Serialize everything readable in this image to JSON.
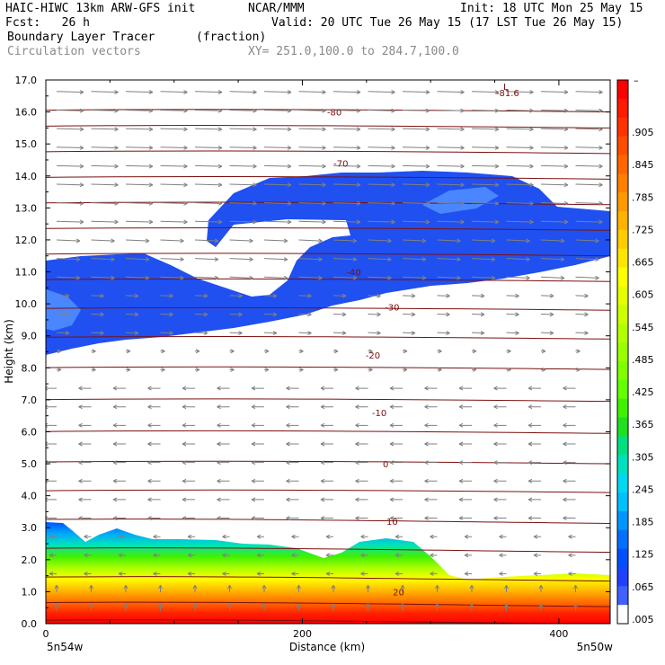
{
  "header": {
    "model_line": "HAIC-HIWC 13km ARW-GFS init",
    "org": "NCAR/MMM",
    "init_line": "Init: 18 UTC Mon 25 May 15",
    "fcst_line": "Fcst:   26 h",
    "valid_line": "Valid: 20 UTC Tue 26 May 15 (17 LST Tue 26 May 15)",
    "field1": "Boundary Layer Tracer",
    "field1_units": "(fraction)",
    "field2": "Circulation vectors",
    "xy_line": "XY= 251.0,100.0 to 284.7,100.0"
  },
  "colors": {
    "contour": "#7a1010",
    "vector": "#808080",
    "frame": "#000000"
  },
  "chart_data": {
    "type": "heatmap",
    "title": "Boundary Layer Tracer",
    "xlabel": "Distance (km)",
    "ylabel": "Height (km)",
    "xlim": [
      0,
      440
    ],
    "ylim": [
      0,
      17
    ],
    "x_ticks": [
      0,
      200,
      400
    ],
    "y_ticks": [
      "0.0",
      "1.0",
      "2.0",
      "3.0",
      "4.0",
      "5.0",
      "6.0",
      "7.0",
      "8.0",
      "9.0",
      "10.0",
      "11.0",
      "12.0",
      "13.0",
      "14.0",
      "15.0",
      "16.0",
      "17.0"
    ],
    "x_endpoints": {
      "left": "5n54w",
      "right": "5n50w"
    },
    "colorbar": {
      "labels": [
        ".905",
        ".845",
        ".785",
        ".725",
        ".665",
        ".605",
        ".545",
        ".485",
        ".425",
        ".365",
        ".305",
        ".245",
        ".185",
        ".125",
        ".065",
        ".005"
      ],
      "top_label": "–",
      "colors": [
        "#ff0000",
        "#ff1a00",
        "#ff3300",
        "#ff4d00",
        "#ff6600",
        "#ff8000",
        "#ff9900",
        "#ffb300",
        "#ffcc00",
        "#ffe600",
        "#ffff00",
        "#e6ff00",
        "#ccff00",
        "#b3ff00",
        "#99ff00",
        "#80ff00",
        "#66ff00",
        "#40f000",
        "#20e020",
        "#00e080",
        "#00e0c0",
        "#00d8f0",
        "#00c0ff",
        "#0096ff",
        "#0070ff",
        "#0050ff",
        "#2040ff",
        "#4060ff",
        "#ffffff"
      ]
    },
    "contours": [
      {
        "label": "-81.6",
        "x": 360,
        "y": 16.6
      },
      {
        "label": "-80",
        "x": 225,
        "y": 16.0
      },
      {
        "label": "-70",
        "x": 230,
        "y": 14.4
      },
      {
        "label": "-40",
        "x": 240,
        "y": 11.0
      },
      {
        "label": "-30",
        "x": 270,
        "y": 9.9
      },
      {
        "label": "-20",
        "x": 255,
        "y": 8.4
      },
      {
        "label": "-10",
        "x": 260,
        "y": 6.6
      },
      {
        "label": "0",
        "x": 265,
        "y": 5.0
      },
      {
        "label": "10",
        "x": 270,
        "y": 3.2
      },
      {
        "label": "20",
        "x": 275,
        "y": 1.0
      }
    ],
    "extra_labels": {
      "low_marker": "L"
    }
  }
}
